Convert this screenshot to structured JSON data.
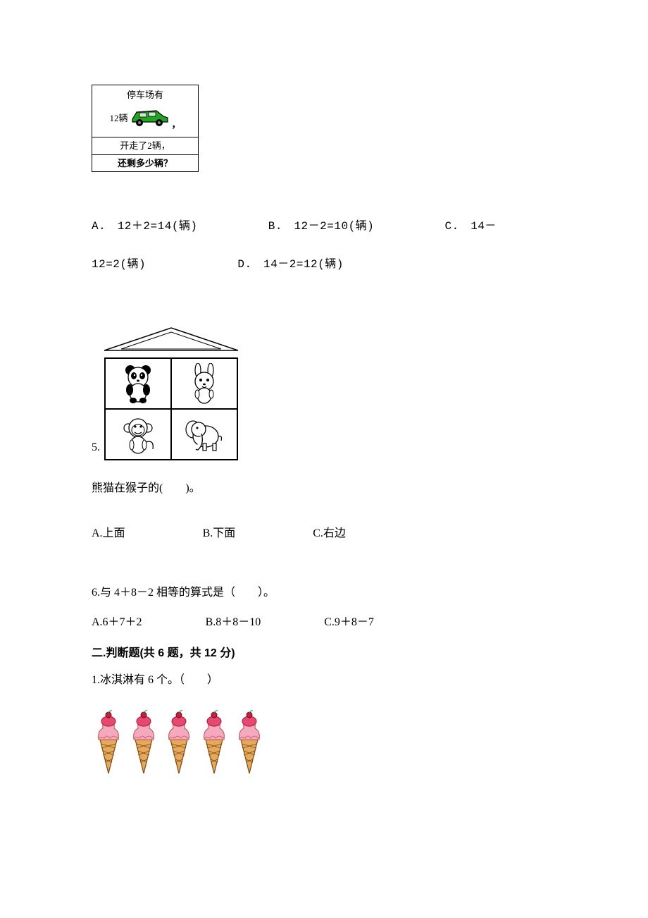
{
  "problem_box": {
    "line1": "停车场有",
    "count_label": "12辆",
    "comma": "，",
    "line3": "开走了2辆，",
    "line4": "还剩多少辆？",
    "car_color": "#1fa81f",
    "car_outline": "#000000"
  },
  "q4_options": {
    "a": "A.　12＋2=14(辆)",
    "b": "B.　12－2=10(辆)",
    "c": "C.　14－",
    "c_cont": "12=2(辆)",
    "d": "D.　14－2=12(辆)"
  },
  "q5": {
    "label": "5.",
    "question": "熊猫在猴子的(　　)。",
    "opt_a": "A.上面",
    "opt_b": "B.下面",
    "opt_c": "C.右边",
    "roof_fill": "#ffffff",
    "roof_stroke": "#000000"
  },
  "q6": {
    "question": "6.与 4＋8－2 相等的算式是（　　）。",
    "opt_a": "A.6＋7＋2",
    "opt_b": "B.8＋8－10",
    "opt_c": "C.9＋8－7"
  },
  "section2": {
    "title": "二.判断题(共 6 题，共 12 分)"
  },
  "tf1": {
    "question": "1.冰淇淋有 6 个。（　　）",
    "cone_color": "#e6a85a",
    "scoop1_color": "#f6a9be",
    "scoop2_color": "#e6496f",
    "cherry_color": "#c41f3b",
    "count": 5
  }
}
